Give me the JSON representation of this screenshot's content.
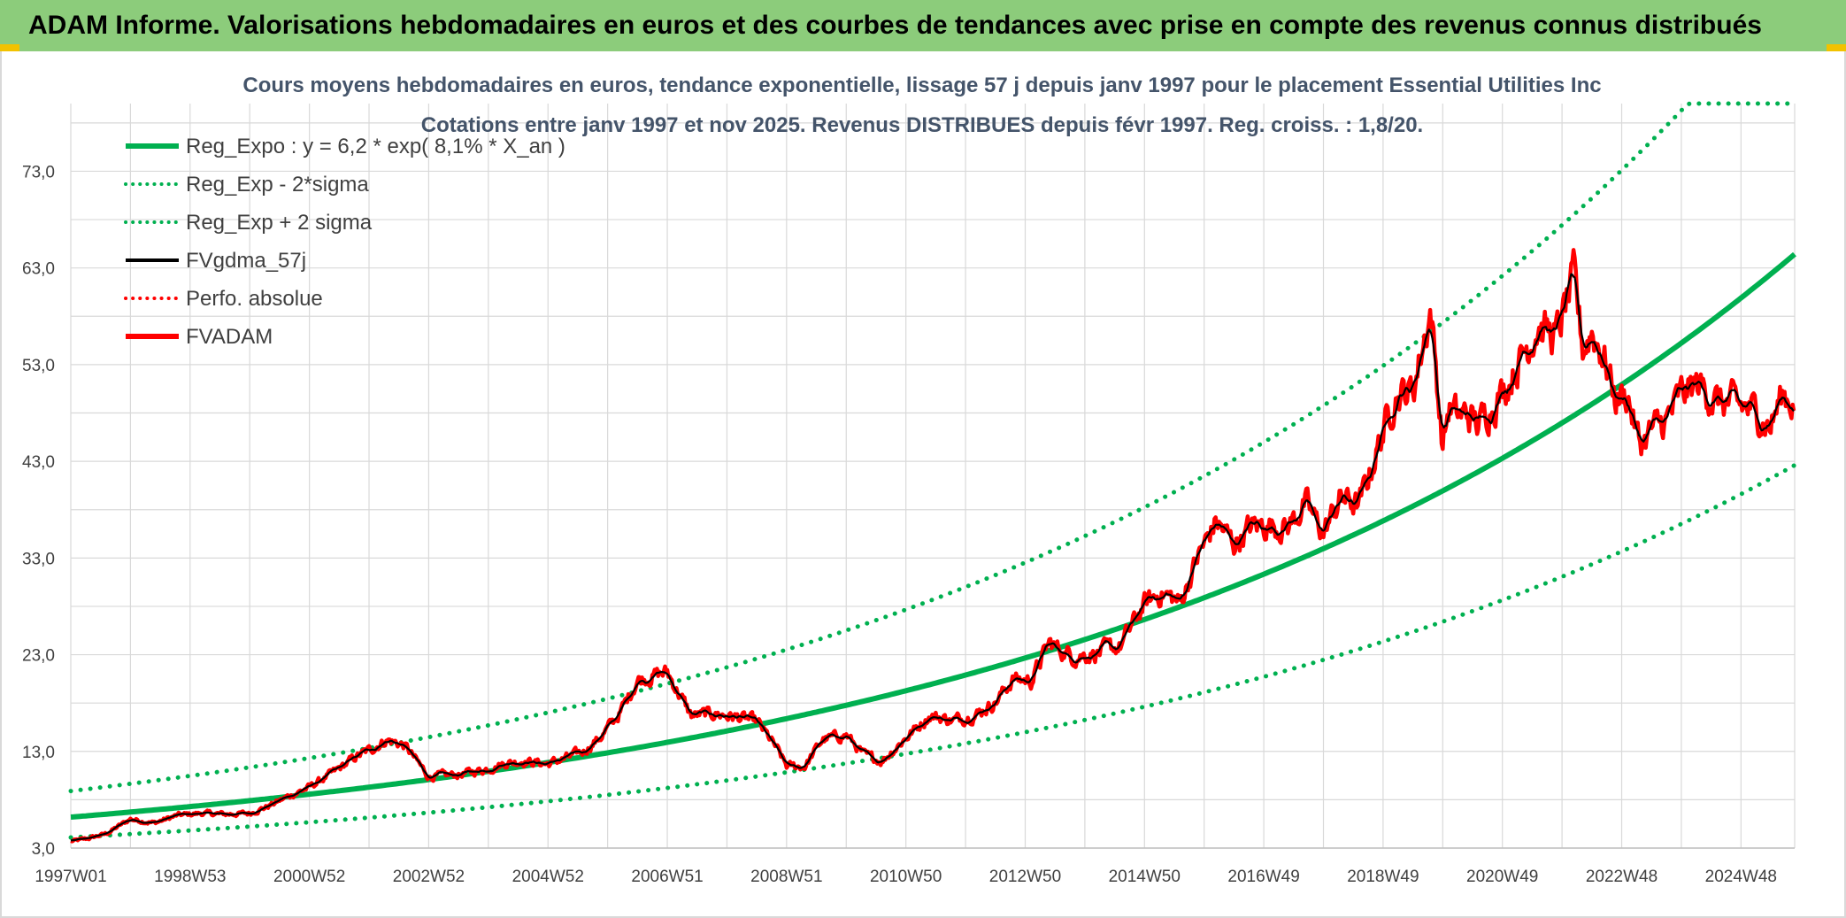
{
  "banner": {
    "title": "ADAM Informe. Valorisations hebdomadaires en euros et des courbes de tendances avec prise en compte des revenus connus distribués"
  },
  "colors": {
    "banner_bg": "#8ccc7b",
    "trend_green": "#00b050",
    "price_red": "#ff0000",
    "smooth_black": "#000000",
    "grid": "#d9d9d9",
    "title_text": "#44546a"
  },
  "chart_data": {
    "type": "line",
    "title": "Cours moyens hebdomadaires en euros, tendance exponentielle, lissage 57 j depuis janv 1997 pour le placement Essential Utilities Inc",
    "subtitle": "Cotations entre janv 1997 et nov 2025. Revenus DISTRIBUES depuis févr 1997. Reg. croiss. : 1,8/20.",
    "xlabel": "",
    "ylabel": "",
    "ylim": [
      3.0,
      80.0
    ],
    "xlim": [
      1997.0,
      2025.9
    ],
    "y_ticks": [
      "3,0",
      "13,0",
      "23,0",
      "33,0",
      "43,0",
      "53,0",
      "63,0",
      "73,0"
    ],
    "y_tick_values": [
      3,
      13,
      23,
      33,
      43,
      53,
      63,
      73
    ],
    "x_tick_labels": [
      "1997W01",
      "1998W53",
      "2000W52",
      "2002W52",
      "2004W52",
      "2006W51",
      "2008W51",
      "2010W50",
      "2012W50",
      "2014W50",
      "2016W49",
      "2018W49",
      "2020W49",
      "2022W48",
      "2024W48"
    ],
    "x_tick_values": [
      1997.0,
      1999.0,
      2001.0,
      2003.0,
      2005.0,
      2007.0,
      2009.0,
      2011.0,
      2013.0,
      2015.0,
      2017.0,
      2019.0,
      2021.0,
      2023.0,
      2025.0
    ],
    "grid": true,
    "legend_position": "top-left",
    "legend": [
      {
        "name": "Reg_Expo : y = 6,2 * exp( 8,1% *  X_an )",
        "style": "solid-thick",
        "color": "#00b050"
      },
      {
        "name": "Reg_Exp - 2*sigma",
        "style": "dotted",
        "color": "#00b050"
      },
      {
        "name": "Reg_Exp + 2 sigma",
        "style": "dotted",
        "color": "#00b050"
      },
      {
        "name": "FVgdma_57j",
        "style": "solid",
        "color": "#000000"
      },
      {
        "name": "Perfo. absolue",
        "style": "dotted",
        "color": "#ff0000"
      },
      {
        "name": "FVADAM",
        "style": "solid-thick",
        "color": "#ff0000"
      }
    ],
    "series": [
      {
        "name": "Reg_Expo",
        "formula": {
          "a": 6.2,
          "rate": 0.081,
          "start_year": 1997
        }
      },
      {
        "name": "Reg_Exp - 2*sigma",
        "formula": {
          "a": 4.1,
          "rate": 0.081,
          "start_year": 1997
        }
      },
      {
        "name": "Reg_Exp + 2 sigma",
        "formula": {
          "a": 8.9,
          "rate": 0.081,
          "start_year": 1997
        },
        "cap": 80.0
      },
      {
        "name": "FVADAM",
        "x": [
          1997.0,
          1997.3,
          1997.6,
          1998.0,
          1998.4,
          1998.8,
          1999.2,
          1999.6,
          2000.0,
          2000.3,
          2000.6,
          2001.0,
          2001.4,
          2001.8,
          2002.0,
          2002.3,
          2002.6,
          2003.0,
          2003.5,
          2004.0,
          2004.3,
          2004.6,
          2005.0,
          2005.3,
          2005.6,
          2005.9,
          2006.2,
          2006.5,
          2007.0,
          2007.4,
          2007.8,
          2008.2,
          2008.5,
          2008.8,
          2009.0,
          2009.3,
          2009.6,
          2010.0,
          2010.3,
          2010.6,
          2011.0,
          2011.4,
          2011.8,
          2012.2,
          2012.5,
          2012.8,
          2013.1,
          2013.4,
          2013.8,
          2014.2,
          2014.6,
          2015.0,
          2015.3,
          2015.6,
          2015.9,
          2016.2,
          2016.5,
          2016.8,
          2017.1,
          2017.4,
          2017.7,
          2018.0,
          2018.3,
          2018.6,
          2018.9,
          2019.2,
          2019.5,
          2019.8,
          2020.0,
          2020.1,
          2020.25,
          2020.4,
          2020.6,
          2020.8,
          2021.0,
          2021.3,
          2021.6,
          2021.9,
          2022.2,
          2022.35,
          2022.5,
          2022.7,
          2022.9,
          2023.1,
          2023.3,
          2023.5,
          2023.75,
          2024.0,
          2024.3,
          2024.6,
          2024.9,
          2025.2,
          2025.5,
          2025.7,
          2025.9
        ],
        "values": [
          3.7,
          4.0,
          4.5,
          6.0,
          5.6,
          6.4,
          6.6,
          6.5,
          6.6,
          7.3,
          8.2,
          9.3,
          10.8,
          12.5,
          13.1,
          14.2,
          13.6,
          10.4,
          10.6,
          11.2,
          11.8,
          12.0,
          11.7,
          12.3,
          13.0,
          14.6,
          16.9,
          20.4,
          21.2,
          16.7,
          16.9,
          16.5,
          16.1,
          13.6,
          11.5,
          11.4,
          14.2,
          14.7,
          12.6,
          12.0,
          14.4,
          16.7,
          16.2,
          16.9,
          18.1,
          20.5,
          20.3,
          24.2,
          22.8,
          23.2,
          23.9,
          28.3,
          29.4,
          28.4,
          33.2,
          36.8,
          34.5,
          36.3,
          36.4,
          36.2,
          38.6,
          35.6,
          39.3,
          38.4,
          44.2,
          49.8,
          50.4,
          58.7,
          44.6,
          48.5,
          47.6,
          47.9,
          46.8,
          48.6,
          50.2,
          53.6,
          57.1,
          55.8,
          61.8,
          54.6,
          56.5,
          53.9,
          49.5,
          49.9,
          44.7,
          46.2,
          47.2,
          49.9,
          51.0,
          49.1,
          48.9,
          48.3,
          46.7,
          50.0,
          49.0
        ]
      },
      {
        "name": "FVgdma_57j",
        "note": "57-day moving average of FVADAM"
      }
    ]
  }
}
